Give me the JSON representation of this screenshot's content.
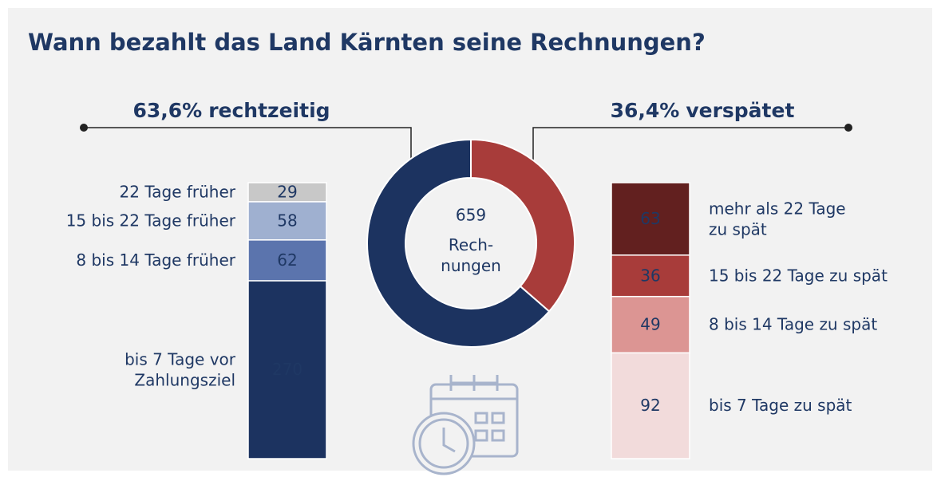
{
  "chart_data": [
    {
      "type": "pie",
      "title": "Wann bezahlt das Land Kärnten seine Rechnungen?",
      "categories": [
        "rechtzeitig",
        "verspätet"
      ],
      "values": [
        63.6,
        36.4
      ],
      "value_labels": [
        "63,6%",
        "36,4%"
      ],
      "colors": [
        "#1c3360",
        "#a83c3a"
      ],
      "center_value": 659,
      "center_label": "Rech-\nnungen"
    },
    {
      "type": "bar",
      "stacked": true,
      "categories": [
        "22 Tage früher",
        "15 bis 22 Tage früher",
        "8 bis 14 Tage früher",
        "bis 7 Tage vor\nZahlungsziel"
      ],
      "values": [
        29,
        58,
        62,
        270
      ],
      "colors": [
        "#c8c8c8",
        "#9fb0d0",
        "#5b74ad",
        "#1c3360"
      ]
    },
    {
      "type": "bar",
      "stacked": true,
      "categories": [
        "mehr als 22 Tage\nzu spät",
        "15 bis 22 Tage zu spät",
        "8 bis 14 Tage zu spät",
        "bis 7 Tage zu spät"
      ],
      "values": [
        63,
        36,
        49,
        92
      ],
      "colors": [
        "#62201f",
        "#a83c3a",
        "#dc9593",
        "#f2dbdb"
      ]
    }
  ]
}
